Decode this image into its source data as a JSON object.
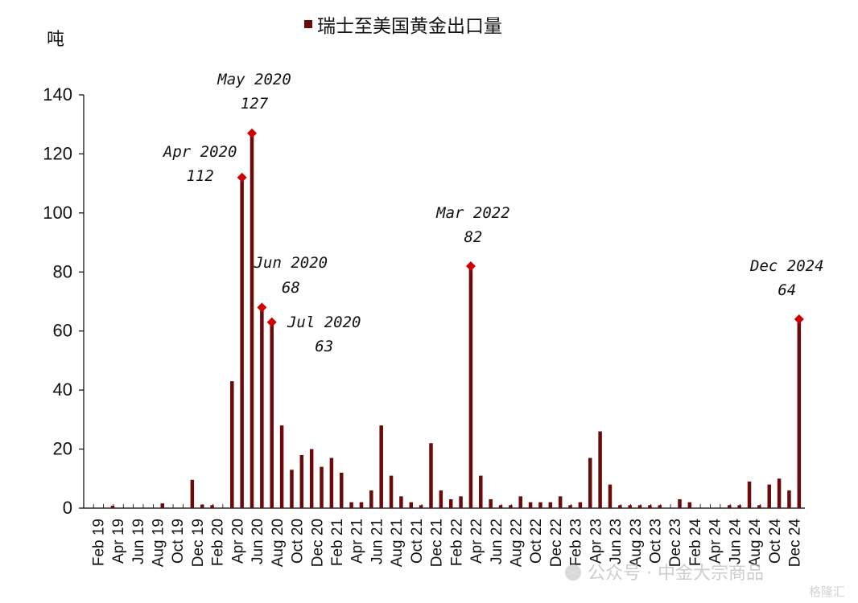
{
  "chart_data": {
    "type": "bar",
    "legend": "瑞士至美国黄金出口量",
    "unit": "吨",
    "ylim": [
      0,
      140
    ],
    "yticks": [
      0,
      20,
      40,
      60,
      80,
      100,
      120,
      140
    ],
    "categories": [
      "2019-01",
      "2019-02",
      "2019-03",
      "2019-04",
      "2019-05",
      "2019-06",
      "2019-07",
      "2019-08",
      "2019-09",
      "2019-10",
      "2019-11",
      "2019-12",
      "2020-01",
      "2020-02",
      "2020-03",
      "2020-04",
      "2020-05",
      "2020-06",
      "2020-07",
      "2020-08",
      "2020-09",
      "2020-10",
      "2020-11",
      "2020-12",
      "2021-01",
      "2021-02",
      "2021-03",
      "2021-04",
      "2021-05",
      "2021-06",
      "2021-07",
      "2021-08",
      "2021-09",
      "2021-10",
      "2021-11",
      "2021-12",
      "2022-01",
      "2022-02",
      "2022-03",
      "2022-04",
      "2022-05",
      "2022-06",
      "2022-07",
      "2022-08",
      "2022-09",
      "2022-10",
      "2022-11",
      "2022-12",
      "2023-01",
      "2023-02",
      "2023-03",
      "2023-04",
      "2023-05",
      "2023-06",
      "2023-07",
      "2023-08",
      "2023-09",
      "2023-10",
      "2023-11",
      "2023-12",
      "2024-01",
      "2024-02",
      "2024-03",
      "2024-04",
      "2024-05",
      "2024-06",
      "2024-07",
      "2024-08",
      "2024-09",
      "2024-10",
      "2024-11",
      "2024-12"
    ],
    "values": [
      0,
      0,
      0.8,
      0,
      0,
      0,
      0,
      1.6,
      0,
      0,
      9.6,
      1.2,
      1,
      0,
      43,
      112,
      127,
      68,
      63,
      28,
      13,
      18,
      20,
      14,
      17,
      12,
      2,
      2,
      6,
      28,
      11,
      4,
      2,
      1,
      22,
      6,
      3,
      4,
      82,
      11,
      3,
      1,
      1,
      4,
      2,
      2,
      2,
      4,
      1,
      2,
      17,
      26,
      8,
      1,
      1,
      1,
      1,
      1,
      0,
      3,
      2,
      0,
      0,
      0,
      1,
      1,
      9,
      1,
      8,
      10,
      6,
      64
    ],
    "x_tick_labels": [
      "Feb 19",
      "Apr 19",
      "Jun 19",
      "Aug 19",
      "Oct 19",
      "Dec 19",
      "Feb 20",
      "Apr 20",
      "Jun 20",
      "Aug 20",
      "Oct 20",
      "Dec 20",
      "Feb 21",
      "Apr 21",
      "Jun 21",
      "Aug 21",
      "Oct 21",
      "Dec 21",
      "Feb 22",
      "Apr 22",
      "Jun 22",
      "Aug 22",
      "Oct 22",
      "Dec 22",
      "Feb 23",
      "Apr 23",
      "Jun 23",
      "Aug 23",
      "Oct 23",
      "Dec 23",
      "Feb 24",
      "Apr 24",
      "Jun 24",
      "Aug 24",
      "Oct 24",
      "Dec 24"
    ],
    "annotations": [
      {
        "category": "2020-04",
        "label": "Apr 2020",
        "value": "112"
      },
      {
        "category": "2020-05",
        "label": "May 2020",
        "value": "127"
      },
      {
        "category": "2020-06",
        "label": "Jun 2020",
        "value": "68"
      },
      {
        "category": "2020-07",
        "label": "Jul 2020",
        "value": "63"
      },
      {
        "category": "2022-03",
        "label": "Mar 2022",
        "value": "82"
      },
      {
        "category": "2024-12",
        "label": "Dec 2024",
        "value": "64"
      }
    ],
    "colors": {
      "bar": "#6b0a0a",
      "marker": "#d00000",
      "axis": "#000000"
    }
  },
  "watermark": {
    "text": "公众号 · 中金大宗商品",
    "logo": "格隆汇"
  }
}
